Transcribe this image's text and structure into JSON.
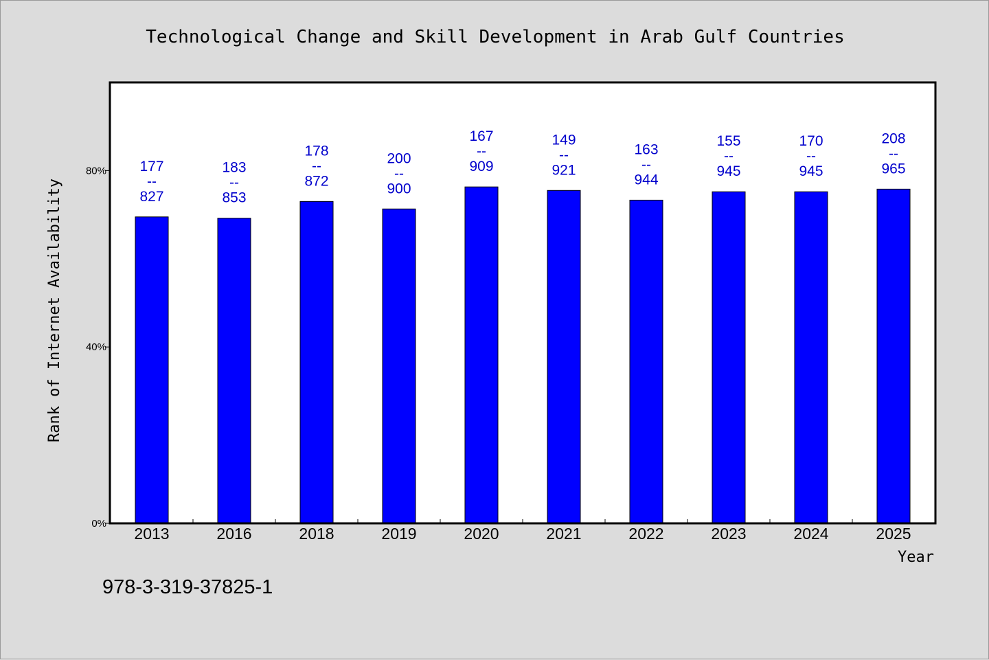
{
  "chart_data": {
    "type": "bar",
    "title": "Technological Change and Skill Development in Arab Gulf Countries",
    "xlabel": "Year",
    "ylabel": "Rank of Internet Availability",
    "ylim": [
      0,
      100
    ],
    "y_ticks": [
      {
        "value": 0,
        "label": "0%"
      },
      {
        "value": 40,
        "label": "40%"
      },
      {
        "value": 80,
        "label": "80%"
      }
    ],
    "categories": [
      "2013",
      "2016",
      "2018",
      "2019",
      "2020",
      "2021",
      "2022",
      "2023",
      "2024",
      "2025"
    ],
    "values": [
      69.5,
      69.2,
      73.0,
      71.3,
      76.3,
      75.5,
      73.3,
      75.2,
      75.2,
      75.8
    ],
    "labels": [
      {
        "top": "177",
        "sep": "--",
        "bottom": "827"
      },
      {
        "top": "183",
        "sep": "--",
        "bottom": "853"
      },
      {
        "top": "178",
        "sep": "--",
        "bottom": "872"
      },
      {
        "top": "200",
        "sep": "--",
        "bottom": "900"
      },
      {
        "top": "167",
        "sep": "--",
        "bottom": "909"
      },
      {
        "top": "149",
        "sep": "--",
        "bottom": "921"
      },
      {
        "top": "163",
        "sep": "--",
        "bottom": "944"
      },
      {
        "top": "155",
        "sep": "--",
        "bottom": "945"
      },
      {
        "top": "170",
        "sep": "--",
        "bottom": "945"
      },
      {
        "top": "208",
        "sep": "--",
        "bottom": "965"
      }
    ],
    "grid": false,
    "bar_color": "#0000ff",
    "label_color": "#0000cc"
  },
  "footer": {
    "isbn": "978-3-319-37825-1"
  },
  "colors": {
    "background": "#dcdcdc",
    "plot_background": "#ffffff"
  }
}
